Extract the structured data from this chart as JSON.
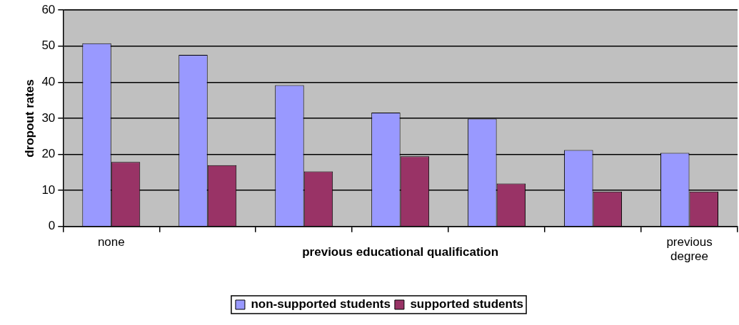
{
  "chart_data": {
    "type": "bar",
    "xlabel": "previous educational qualification",
    "ylabel": "dropout rates",
    "categories": [
      "none",
      null,
      null,
      null,
      null,
      null,
      "previous degree"
    ],
    "series": [
      {
        "name": "non-supported students",
        "color": "#9999ff",
        "values": [
          50.8,
          47.6,
          39.2,
          31.6,
          29.9,
          21.2,
          20.4
        ]
      },
      {
        "name": "supported students",
        "color": "#993366",
        "values": [
          17.9,
          17.0,
          15.3,
          19.5,
          11.9,
          9.7,
          9.7
        ]
      }
    ],
    "ylim": [
      0,
      60
    ],
    "yticks": [
      0,
      10,
      20,
      30,
      40,
      50,
      60
    ],
    "grid": "y",
    "legend": "bottom"
  }
}
